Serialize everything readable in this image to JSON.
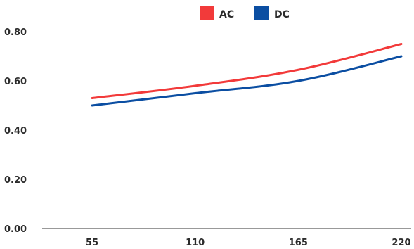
{
  "chart_data": {
    "type": "line",
    "title": "",
    "xlabel": "",
    "ylabel": "",
    "x": [
      55,
      110,
      165,
      220
    ],
    "x_tick_labels": [
      "55",
      "110",
      "165",
      "220"
    ],
    "y_tick_labels": [
      "0.00",
      "0.20",
      "0.40",
      "0.60",
      "0.80"
    ],
    "ylim": [
      0,
      0.8
    ],
    "grid": false,
    "legend_position": "top-center",
    "series": [
      {
        "name": "AC",
        "color": "#f23a3a",
        "values": [
          0.53,
          0.58,
          0.645,
          0.75
        ]
      },
      {
        "name": "DC",
        "color": "#0b4ea2",
        "values": [
          0.5,
          0.55,
          0.6,
          0.7
        ]
      }
    ]
  }
}
